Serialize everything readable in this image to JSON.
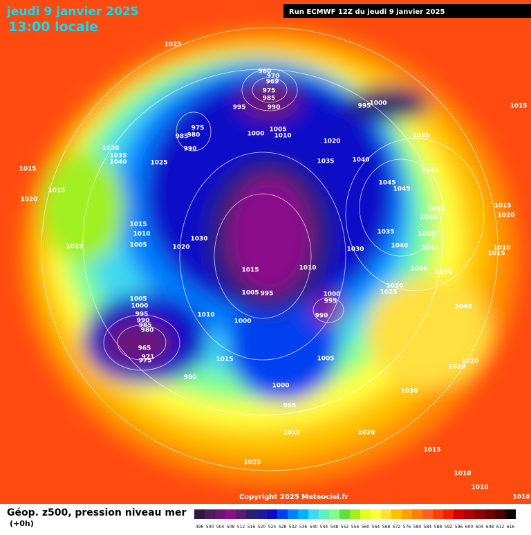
{
  "header": {
    "title": "jeudi 9 janvier 2025",
    "subtitle": "13:00 locale",
    "run": "Run ECMWF 12Z du jeudi 9 janvier 2025"
  },
  "footer": {
    "title": "Géop. z500, pression niveau mer",
    "subtitle": "(+0h)",
    "copyright": "Copyright 2025 Meteociel.fr"
  },
  "isobar_labels": [
    1025,
    980,
    970,
    969,
    975,
    985,
    990,
    995,
    975,
    985,
    980,
    990,
    1000,
    1005,
    1010,
    995,
    1000,
    1015,
    1020,
    1035,
    1030,
    1035,
    1040,
    1025,
    1015,
    1035,
    1040,
    1045,
    1015,
    1045,
    1045,
    1020,
    1035,
    1040,
    1015,
    1020,
    1015,
    1010,
    1030,
    1035,
    1050,
    1005,
    1020,
    1025,
    1030,
    1040,
    1045,
    1010,
    1015,
    1015,
    1010,
    1045,
    1050,
    1030,
    1025,
    1005,
    1000,
    995,
    1005,
    995,
    1000,
    995,
    990,
    1040,
    1010,
    1000,
    990,
    985,
    980,
    965,
    971,
    975,
    1015,
    1005,
    1020,
    1020,
    980,
    1000,
    1030,
    995,
    1010,
    1020,
    1015,
    1025,
    1010,
    1010,
    1010
  ],
  "legend": {
    "steps": [
      {
        "value": 496,
        "color": "#2e1a3e"
      },
      {
        "value": 500,
        "color": "#4b1d5c"
      },
      {
        "value": 504,
        "color": "#6a1478"
      },
      {
        "value": 508,
        "color": "#8c0d8c"
      },
      {
        "value": 512,
        "color": "#5a1a6e"
      },
      {
        "value": 516,
        "color": "#2b2070"
      },
      {
        "value": 520,
        "color": "#1a1a9a"
      },
      {
        "value": 524,
        "color": "#0a0ac8"
      },
      {
        "value": 528,
        "color": "#0040f0"
      },
      {
        "value": 532,
        "color": "#0080ff"
      },
      {
        "value": 536,
        "color": "#00b0ff"
      },
      {
        "value": 540,
        "color": "#40d8f0"
      },
      {
        "value": 544,
        "color": "#60f0c0"
      },
      {
        "value": 548,
        "color": "#80ff90"
      },
      {
        "value": 552,
        "color": "#60e040"
      },
      {
        "value": 556,
        "color": "#a0f020"
      },
      {
        "value": 560,
        "color": "#e0ff20"
      },
      {
        "value": 564,
        "color": "#ffff40"
      },
      {
        "value": 568,
        "color": "#ffe040"
      },
      {
        "value": 572,
        "color": "#ffc000"
      },
      {
        "value": 576,
        "color": "#ffa000"
      },
      {
        "value": 580,
        "color": "#ff8000"
      },
      {
        "value": 584,
        "color": "#ff6020"
      },
      {
        "value": 588,
        "color": "#ff4000"
      },
      {
        "value": 592,
        "color": "#f02000"
      },
      {
        "value": 596,
        "color": "#d00000"
      },
      {
        "value": 600,
        "color": "#b00000"
      },
      {
        "value": 604,
        "color": "#900000"
      },
      {
        "value": 608,
        "color": "#700000"
      },
      {
        "value": 612,
        "color": "#500000"
      },
      {
        "value": 616,
        "color": "#100000"
      }
    ]
  }
}
